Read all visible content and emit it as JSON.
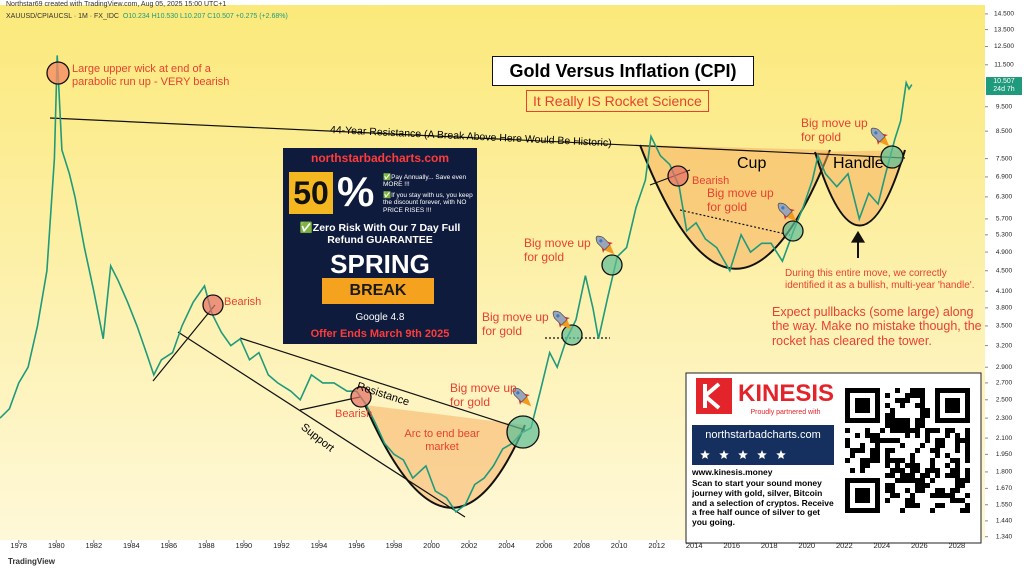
{
  "header": {
    "credit": "Northstar69 created with TradingView.com, Aug 05, 2025 15:00 UTC+1",
    "symbol": "XAUUSD/CPIAUCSL · 1M · FX_IDC",
    "ohlc": "O10.234 H10.530 L10.207 C10.507 +0.275 (+2.68%)",
    "price_tag": "10.507",
    "countdown": "24d 7h",
    "brand": "TradingView"
  },
  "chart_data": {
    "type": "line",
    "color": "#1f9a7c",
    "log_scale": true,
    "grid": false,
    "xlim": [
      1977,
      2029.5
    ],
    "ylim": [
      1.32,
      15.1
    ],
    "xticks": [
      1978,
      1980,
      1982,
      1984,
      1986,
      1988,
      1990,
      1992,
      1994,
      1996,
      1998,
      2000,
      2002,
      2004,
      2006,
      2008,
      2010,
      2012,
      2014,
      2016,
      2018,
      2020,
      2022,
      2024,
      2026,
      2028
    ],
    "yticks": [
      {
        "value": 14.5,
        "label": "14.500"
      },
      {
        "value": 13.5,
        "label": "13.500"
      },
      {
        "value": 12.5,
        "label": "12.500"
      },
      {
        "value": 11.5,
        "label": "11.500"
      },
      {
        "value": 9.5,
        "label": "9.500"
      },
      {
        "value": 8.5,
        "label": "8.500"
      },
      {
        "value": 7.5,
        "label": "7.500"
      },
      {
        "value": 6.9,
        "label": "6.900"
      },
      {
        "value": 6.3,
        "label": "6.300"
      },
      {
        "value": 5.7,
        "label": "5.700"
      },
      {
        "value": 5.3,
        "label": "5.300"
      },
      {
        "value": 4.9,
        "label": "4.900"
      },
      {
        "value": 4.5,
        "label": "4.500"
      },
      {
        "value": 4.1,
        "label": "4.100"
      },
      {
        "value": 3.8,
        "label": "3.800"
      },
      {
        "value": 3.5,
        "label": "3.500"
      },
      {
        "value": 3.2,
        "label": "3.200"
      },
      {
        "value": 2.9,
        "label": "2.900"
      },
      {
        "value": 2.7,
        "label": "2.700"
      },
      {
        "value": 2.5,
        "label": "2.500"
      },
      {
        "value": 2.3,
        "label": "2.300"
      },
      {
        "value": 2.1,
        "label": "2.100"
      },
      {
        "value": 1.95,
        "label": "1.950"
      },
      {
        "value": 1.8,
        "label": "1.800"
      },
      {
        "value": 1.67,
        "label": "1.670"
      },
      {
        "value": 1.55,
        "label": "1.550"
      },
      {
        "value": 1.44,
        "label": "1.440"
      },
      {
        "value": 1.34,
        "label": "1.340"
      }
    ],
    "x": [
      1977.0,
      1977.5,
      1978.0,
      1978.5,
      1979.0,
      1979.5,
      1979.9,
      1980.05,
      1980.3,
      1980.7,
      1981.0,
      1981.5,
      1982.0,
      1982.5,
      1982.9,
      1983.3,
      1983.8,
      1984.3,
      1984.8,
      1985.2,
      1985.6,
      1986.2,
      1986.7,
      1987.3,
      1987.9,
      1988.3,
      1988.8,
      1989.3,
      1989.8,
      1990.3,
      1990.8,
      1991.3,
      1991.8,
      1992.5,
      1993.0,
      1993.6,
      1994.2,
      1994.8,
      1995.5,
      1996.0,
      1996.5,
      1997.0,
      1997.5,
      1998.0,
      1998.5,
      1999.0,
      1999.7,
      2000.2,
      2000.8,
      2001.3,
      2001.8,
      2002.3,
      2002.8,
      2003.3,
      2003.8,
      2004.3,
      2004.8,
      2005.3,
      2005.8,
      2006.3,
      2006.7,
      2007.2,
      2007.7,
      2008.2,
      2008.6,
      2008.9,
      2009.4,
      2009.9,
      2010.4,
      2010.9,
      2011.4,
      2011.7,
      2012.2,
      2012.7,
      2013.2,
      2013.6,
      2014.1,
      2014.6,
      2015.2,
      2015.9,
      2016.5,
      2017.0,
      2017.6,
      2018.1,
      2018.7,
      2019.3,
      2019.8,
      2020.3,
      2020.6,
      2021.0,
      2021.6,
      2022.2,
      2022.8,
      2023.3,
      2023.8,
      2024.2,
      2024.7,
      2025.0,
      2025.3,
      2025.45,
      2025.6
    ],
    "values": [
      2.3,
      2.4,
      2.7,
      2.9,
      3.5,
      4.5,
      7.5,
      12.0,
      7.8,
      7.0,
      6.3,
      5.0,
      4.1,
      3.3,
      4.6,
      4.3,
      3.9,
      3.5,
      3.1,
      2.8,
      3.0,
      3.1,
      3.5,
      3.9,
      4.2,
      3.7,
      3.4,
      3.2,
      3.3,
      3.0,
      3.1,
      2.8,
      2.7,
      2.6,
      2.5,
      2.8,
      2.7,
      2.7,
      2.6,
      2.6,
      2.45,
      2.25,
      2.05,
      1.95,
      1.9,
      1.75,
      1.85,
      1.65,
      1.6,
      1.5,
      1.55,
      1.7,
      1.75,
      1.85,
      2.0,
      2.05,
      2.15,
      2.2,
      2.6,
      3.1,
      2.9,
      3.3,
      3.6,
      4.4,
      3.8,
      3.3,
      4.0,
      4.8,
      5.0,
      6.0,
      6.8,
      8.3,
      7.6,
      7.3,
      6.6,
      5.4,
      5.6,
      5.2,
      5.0,
      4.5,
      5.3,
      4.9,
      5.1,
      5.1,
      4.7,
      5.4,
      6.0,
      6.8,
      7.6,
      7.0,
      6.6,
      7.0,
      5.7,
      6.4,
      6.1,
      7.0,
      8.2,
      8.9,
      10.6,
      10.3,
      10.507
    ]
  },
  "annotations": {
    "title": "Gold Versus Inflation (CPI)",
    "subtitle": "It Really IS Rocket Science",
    "wick": "Large upper wick at end of a parabolic run up - VERY bearish",
    "resistance_44": "44-Year Resistance (A Break Above Here Would Be Historic)",
    "bearish": [
      "Bearish",
      "Bearish",
      "Bearish"
    ],
    "resistance": "Resistance",
    "support": "Support",
    "arc": "Arc to end bear market",
    "big_move": [
      "Big move up for gold",
      "Big move up for gold",
      "Big move up for gold",
      "Big move up for gold",
      "Big move up for gold"
    ],
    "cup": "Cup",
    "handle": "Handle",
    "handle_note": "During this entire move, we correctly identified it as a bullish, multi-year 'handle'.",
    "pullbacks": "Expect pullbacks (some large) along the way. Make no mistake though, the rocket has cleared the tower."
  },
  "promo": {
    "site": "northstarbadcharts.com",
    "big_number": "50",
    "percent": "%",
    "perk_1": "✅Pay Annually... Save even MORE !!!",
    "perk_2": "✅If you stay with us, you keep the discount forever, with NO PRICE RISES !!!",
    "guarantee": "✅Zero Risk With Our 7 Day Full Refund GUARANTEE",
    "spring": "SPRING",
    "break": "BREAK",
    "rating": "Google 4.8",
    "offer": "Offer Ends March 9th 2025"
  },
  "kinesis": {
    "logo": "KINESIS",
    "partner": "Proudly partnered with",
    "site": "northstarbadcharts.com",
    "url": "www.kinesis.money",
    "blurb": "Scan to start your sound money journey with gold, silver, Bitcoin and a selection of cryptos. Receive a free half ounce of silver to get you going."
  }
}
